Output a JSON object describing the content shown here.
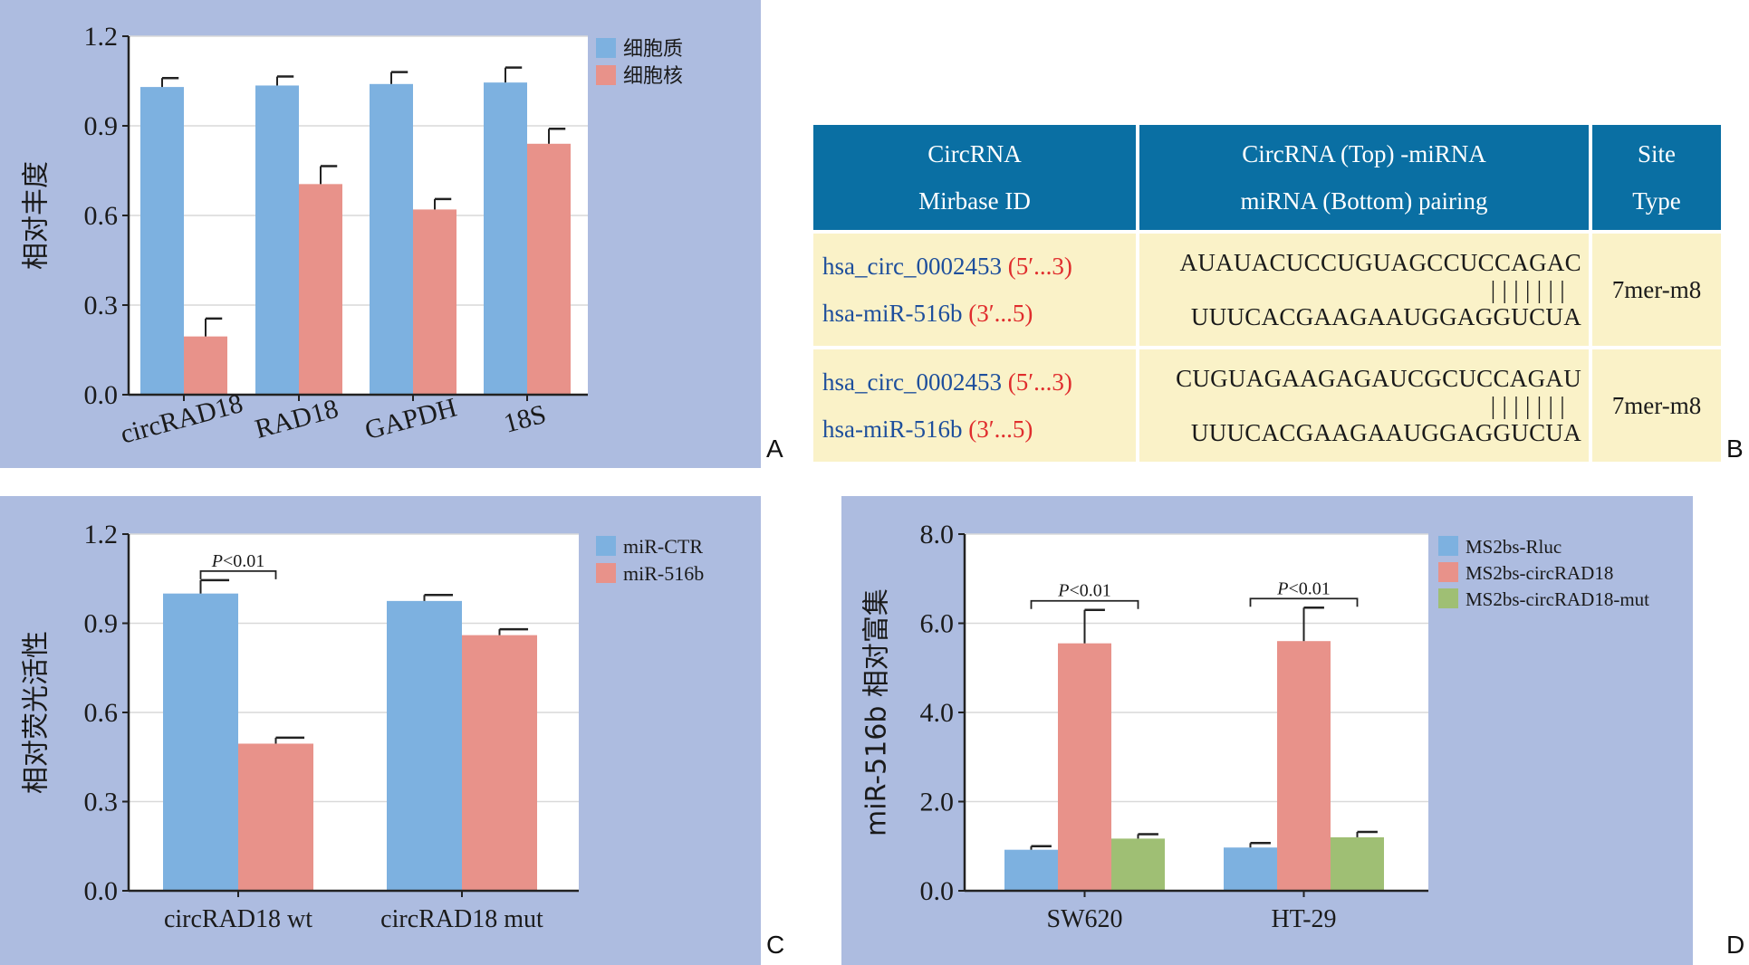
{
  "colors": {
    "panel_bg": "#adbce0",
    "cytoplasm": "#7db1e0",
    "nucleus": "#e8928a",
    "mut": "#9fbf74",
    "table_header_bg": "#0a6fa3",
    "table_body_bg": "#faf2c8",
    "id_text": "#1e4f9c",
    "direction_text": "#e02d2d"
  },
  "chart_data": [
    {
      "panel": "A",
      "type": "bar",
      "ylabel": "相对丰度",
      "ylim": [
        0,
        1.2
      ],
      "yticks": [
        "0.0",
        "0.3",
        "0.6",
        "0.9",
        "1.2"
      ],
      "categories": [
        "circRAD18",
        "RAD18",
        "GAPDH",
        "18S"
      ],
      "series": [
        {
          "name": "细胞质",
          "color": "#7db1e0",
          "values": [
            1.03,
            1.035,
            1.04,
            1.045
          ],
          "errors": [
            0.03,
            0.03,
            0.04,
            0.05
          ]
        },
        {
          "name": "细胞核",
          "color": "#e8928a",
          "values": [
            0.195,
            0.705,
            0.62,
            0.84
          ],
          "errors": [
            0.06,
            0.06,
            0.035,
            0.05
          ]
        }
      ],
      "legend": "top-right",
      "annotations": []
    },
    {
      "panel": "C",
      "type": "bar",
      "ylabel": "相对荧光活性",
      "ylim": [
        0,
        1.2
      ],
      "yticks": [
        "0.0",
        "0.3",
        "0.6",
        "0.9",
        "1.2"
      ],
      "categories": [
        "circRAD18 wt",
        "circRAD18 mut"
      ],
      "series": [
        {
          "name": "miR-CTR",
          "color": "#7db1e0",
          "values": [
            1.0,
            0.975
          ],
          "errors": [
            0.045,
            0.02
          ]
        },
        {
          "name": "miR-516b",
          "color": "#e8928a",
          "values": [
            0.495,
            0.86
          ],
          "errors": [
            0.02,
            0.02
          ]
        }
      ],
      "legend": "top-right",
      "annotations": [
        {
          "text_italic": "P",
          "text": "<0.01",
          "category": 0,
          "from_series": 0,
          "to_series": 1
        }
      ]
    },
    {
      "panel": "D",
      "type": "bar",
      "ylabel": "miR-516b 相对富集",
      "ylim": [
        0,
        8
      ],
      "yticks": [
        "0.0",
        "2.0",
        "4.0",
        "6.0",
        "8.0"
      ],
      "categories": [
        "SW620",
        "HT-29"
      ],
      "series": [
        {
          "name": "MS2bs-Rluc",
          "color": "#7db1e0",
          "values": [
            0.92,
            0.97
          ],
          "errors": [
            0.08,
            0.1
          ]
        },
        {
          "name": "MS2bs-circRAD18",
          "color": "#e8928a",
          "values": [
            5.55,
            5.6
          ],
          "errors": [
            0.75,
            0.75
          ]
        },
        {
          "name": "MS2bs-circRAD18-mut",
          "color": "#9fbf74",
          "values": [
            1.17,
            1.2
          ],
          "errors": [
            0.1,
            0.12
          ]
        }
      ],
      "legend": "top-right",
      "annotations": [
        {
          "text_italic": "P",
          "text": "<0.01",
          "category": 0,
          "from_series": 0,
          "to_series": 2
        },
        {
          "text_italic": "P",
          "text": "<0.01",
          "category": 1,
          "from_series": 0,
          "to_series": 2
        }
      ]
    }
  ],
  "table": {
    "headers": [
      [
        "CircRNA",
        "Mirbase ID"
      ],
      [
        "CircRNA (Top) -miRNA",
        "miRNA (Bottom) pairing"
      ],
      [
        "Site",
        "Type"
      ]
    ],
    "rows": [
      {
        "circ_id": "hsa_circ_0002453",
        "circ_dir": "(5′...3)",
        "mirna_id": "hsa-miR-516b",
        "mirna_dir": "(3′...5)",
        "top": "AUAUACUCCUGUAGCCUCCAGAC",
        "bars": "| | | | | | |",
        "bottom": "UUUCACGAAGAAUGGAGGUCUA",
        "site_type": "7mer-m8"
      },
      {
        "circ_id": "hsa_circ_0002453",
        "circ_dir": "(5′...3)",
        "mirna_id": "hsa-miR-516b",
        "mirna_dir": "(3′...5)",
        "top": "CUGUAGAAGAGAUCGCUCCAGAU",
        "bars": "| | | | | | |",
        "bottom": "UUUCACGAAGAAUGGAGGUCUA",
        "site_type": "7mer-m8"
      }
    ]
  },
  "panel_labels": {
    "a": "A",
    "b": "B",
    "c": "C",
    "d": "D"
  }
}
